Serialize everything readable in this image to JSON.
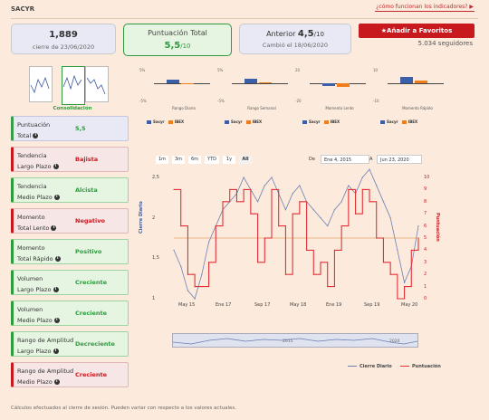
{
  "header": {
    "title": "SACYR",
    "help_link": "¿cómo funcionan los indicadores?"
  },
  "summary": {
    "price": "1,889",
    "price_date": "cierre de 23/06/2020",
    "score_label": "Puntuación Total",
    "score_value": "5,5",
    "score_max": "/10",
    "prev_label": "Anterior",
    "prev_value": "4,5",
    "prev_max": "/10",
    "prev_date": "Cambió el 18/06/2020",
    "fav_button": "Añadir a Favoritos",
    "followers": "5.034 seguidores"
  },
  "mini_tabs": {
    "active_label": "Consolidación"
  },
  "small_charts": [
    {
      "caption": "Rango Diario",
      "top_tick": "5%",
      "bottom_tick": "-5%",
      "sacyr": 1.4,
      "ibex": -0.1
    },
    {
      "caption": "Rango Semanal",
      "top_tick": "5%",
      "bottom_tick": "-5%",
      "sacyr": 1.7,
      "ibex": 0.5
    },
    {
      "caption": "Momento Lento",
      "top_tick": "20",
      "bottom_tick": "-20",
      "sacyr": -4.5,
      "ibex": -5.5
    },
    {
      "caption": "Momento Rápido",
      "top_tick": "10",
      "bottom_tick": "-10",
      "sacyr": 4.8,
      "ibex": 2.1
    }
  ],
  "small_legend": {
    "a": "Sacyr",
    "b": "IBEX"
  },
  "indicators": [
    {
      "label1": "Puntuación",
      "label2": "Total",
      "value": "5,5",
      "tone": "blue"
    },
    {
      "label1": "Tendencia",
      "label2": "Largo Plazo",
      "value": "Bajista",
      "tone": "red"
    },
    {
      "label1": "Tendencia",
      "label2": "Medio Plazo",
      "value": "Alcista",
      "tone": "green"
    },
    {
      "label1": "Momento",
      "label2": "Total Lento",
      "value": "Negativo",
      "tone": "red"
    },
    {
      "label1": "Momento",
      "label2": "Total Rápido",
      "value": "Positivo",
      "tone": "green"
    },
    {
      "label1": "Volumen",
      "label2": "Largo Plazo",
      "value": "Creciente",
      "tone": "green"
    },
    {
      "label1": "Volumen",
      "label2": "Medio Plazo",
      "value": "Creciente",
      "tone": "green"
    },
    {
      "label1": "Rango de Amplitud",
      "label2": "Largo Plazo",
      "value": "Decreciente",
      "tone": "green"
    },
    {
      "label1": "Rango de Amplitud",
      "label2": "Medio Plazo",
      "value": "Creciente",
      "tone": "red"
    }
  ],
  "range_buttons": [
    "1m",
    "3m",
    "6m",
    "YTD",
    "1y",
    "All"
  ],
  "date_range": {
    "from_label": "De",
    "from": "Ene 4, 2015",
    "to_label": "A",
    "to": "Jun 23, 2020"
  },
  "chart_data": {
    "type": "line",
    "x_ticks": [
      "May 15",
      "Ene 17",
      "Sep 17",
      "May 18",
      "Ene 19",
      "Sep 19",
      "May 20"
    ],
    "y_left": {
      "title": "Cierre Diario",
      "ticks": [
        "1",
        "1,5",
        "2",
        "2,5"
      ],
      "range": [
        1,
        2.5
      ]
    },
    "y_right": {
      "title": "Puntuación",
      "ticks": [
        "0",
        "1",
        "2",
        "3",
        "4",
        "5",
        "6",
        "7",
        "8",
        "9",
        "10"
      ],
      "range": [
        0,
        10
      ]
    },
    "navigator_labels": [
      "2015",
      "2020"
    ],
    "series": [
      {
        "name": "Cierre Diario",
        "color": "#6b7fb3",
        "values": [
          1.6,
          1.4,
          1.1,
          1.0,
          1.3,
          1.7,
          1.9,
          2.1,
          2.2,
          2.3,
          2.5,
          2.35,
          2.2,
          2.4,
          2.5,
          2.3,
          2.1,
          2.3,
          2.4,
          2.2,
          2.1,
          2.0,
          1.9,
          2.1,
          2.2,
          2.4,
          2.3,
          2.5,
          2.6,
          2.4,
          2.2,
          2.0,
          1.6,
          1.2,
          1.4,
          1.9
        ]
      },
      {
        "name": "Puntuación",
        "color": "#e0303a",
        "values": [
          9,
          6,
          2,
          1,
          1,
          3,
          6,
          8,
          9,
          8,
          9,
          7,
          3,
          5,
          9,
          6,
          2,
          7,
          8,
          4,
          2,
          3,
          1,
          4,
          6,
          9,
          7,
          9,
          8,
          5,
          3,
          2,
          0,
          1,
          4,
          5
        ]
      }
    ],
    "reference_value": 5
  },
  "footnote": "Cálculos efectuados al cierre de sesión. Pueden variar con respecto a los valores actuales."
}
